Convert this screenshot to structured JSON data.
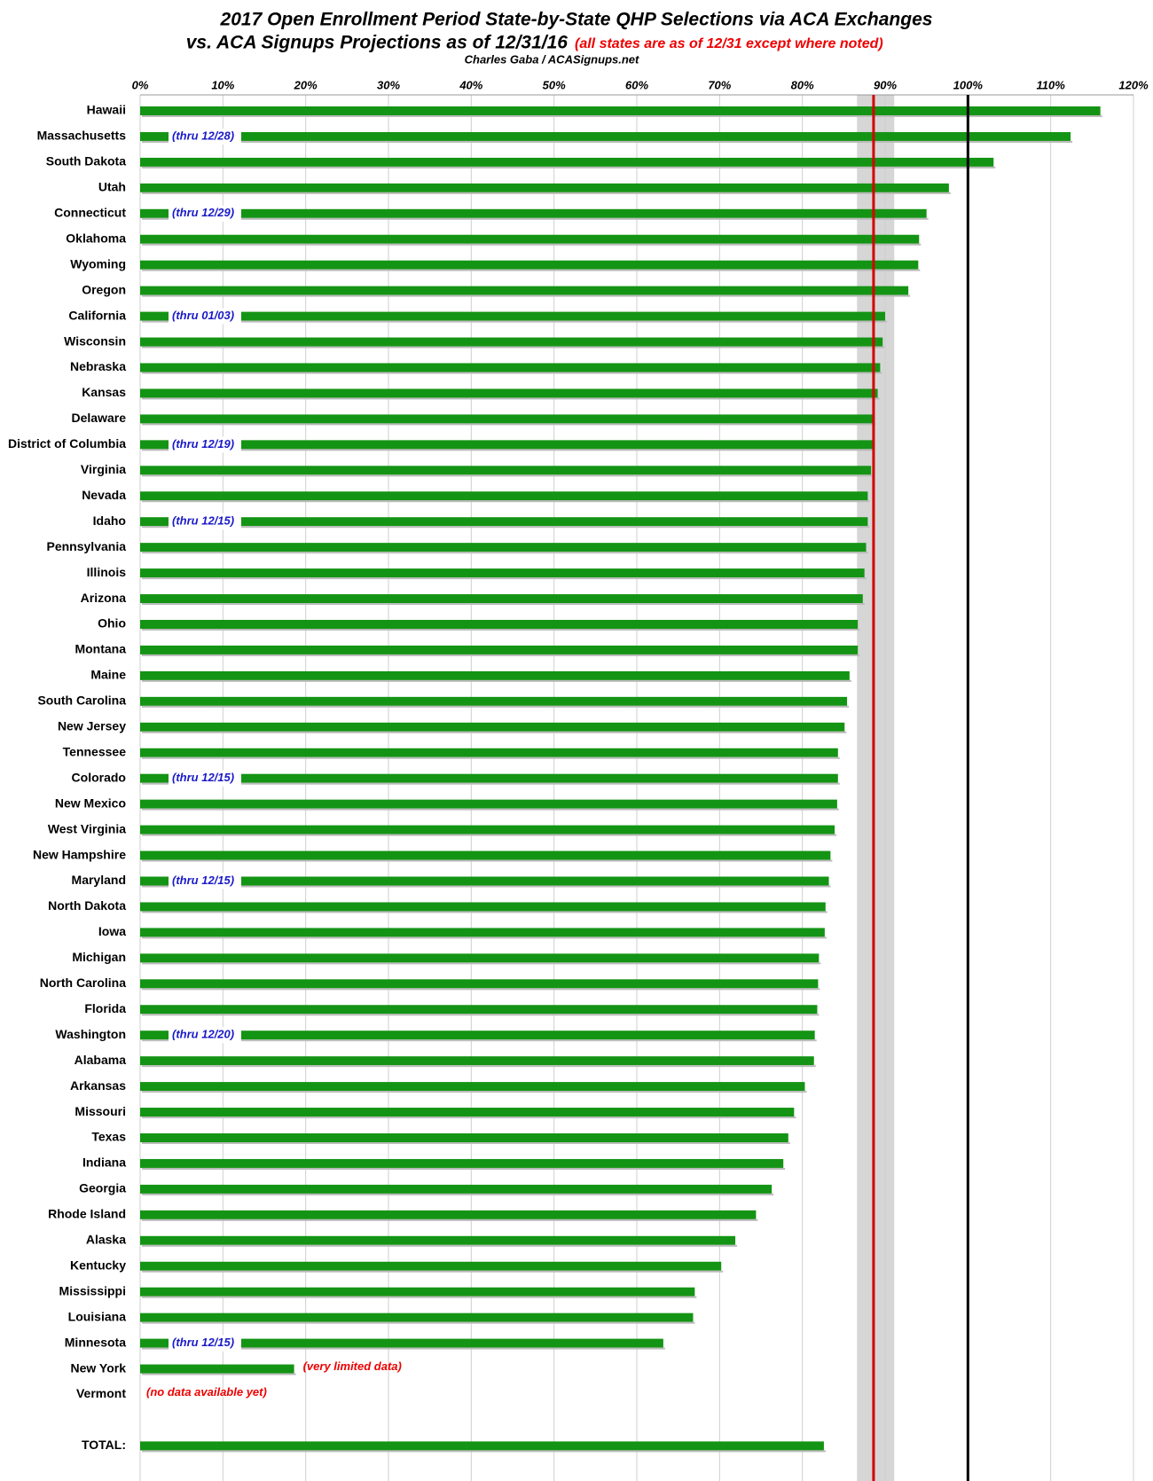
{
  "chart_data": {
    "type": "hbar",
    "title": "2017 Open Enrollment Period State-by-State QHP Selections via ACA Exchanges",
    "title_line2": "vs. ACA Signups Projections as of 12/31/16",
    "title_note": "(all states are as of 12/31 except where noted)",
    "subtitle": "Charles Gaba / ACASignups.net",
    "categories": [
      "Hawaii",
      "Massachusetts",
      "South Dakota",
      "Utah",
      "Connecticut",
      "Oklahoma",
      "Wyoming",
      "Oregon",
      "California",
      "Wisconsin",
      "Nebraska",
      "Kansas",
      "Delaware",
      "District of Columbia",
      "Virginia",
      "Nevada",
      "Idaho",
      "Pennsylvania",
      "Illinois",
      "Arizona",
      "Ohio",
      "Montana",
      "Maine",
      "South Carolina",
      "New Jersey",
      "Tennessee",
      "Colorado",
      "New Mexico",
      "West Virginia",
      "New Hampshire",
      "Maryland",
      "North Dakota",
      "Iowa",
      "Michigan",
      "North Carolina",
      "Florida",
      "Washington",
      "Alabama",
      "Arkansas",
      "Missouri",
      "Texas",
      "Indiana",
      "Georgia",
      "Rhode Island",
      "Alaska",
      "Kentucky",
      "Mississippi",
      "Louisiana",
      "Minnesota",
      "New York",
      "Vermont",
      null,
      "TOTAL:"
    ],
    "values": [
      116.0,
      112.4,
      103.1,
      97.7,
      95.0,
      94.1,
      94.0,
      92.8,
      90.0,
      89.7,
      89.4,
      89.1,
      88.6,
      88.5,
      88.3,
      87.9,
      87.9,
      87.7,
      87.5,
      87.3,
      86.7,
      86.7,
      85.7,
      85.4,
      85.1,
      84.3,
      84.3,
      84.2,
      83.9,
      83.4,
      83.2,
      82.8,
      82.7,
      82.0,
      81.9,
      81.8,
      81.5,
      81.4,
      80.3,
      79.0,
      78.3,
      77.7,
      76.3,
      74.4,
      71.9,
      70.2,
      67.0,
      66.8,
      63.2,
      18.6,
      null,
      null,
      82.6
    ],
    "period_notes": [
      null,
      "(thru 12/28)",
      null,
      null,
      "(thru 12/29)",
      null,
      null,
      null,
      "(thru 01/03)",
      null,
      null,
      null,
      null,
      "(thru 12/19)",
      null,
      null,
      "(thru 12/15)",
      null,
      null,
      null,
      null,
      null,
      null,
      null,
      null,
      null,
      "(thru 12/15)",
      null,
      null,
      null,
      "(thru 12/15)",
      null,
      null,
      null,
      null,
      null,
      "(thru 12/20)",
      null,
      null,
      null,
      null,
      null,
      null,
      null,
      null,
      null,
      null,
      null,
      "(thru 12/15)",
      null,
      null,
      null,
      null
    ],
    "data_notes": [
      null,
      null,
      null,
      null,
      null,
      null,
      null,
      null,
      null,
      null,
      null,
      null,
      null,
      null,
      null,
      null,
      null,
      null,
      null,
      null,
      null,
      null,
      null,
      null,
      null,
      null,
      null,
      null,
      null,
      null,
      null,
      null,
      null,
      null,
      null,
      null,
      null,
      null,
      null,
      null,
      null,
      null,
      null,
      null,
      null,
      null,
      null,
      null,
      null,
      "(very limited data)",
      "(no data available yet)",
      null,
      null
    ],
    "color": "#149414",
    "xlim": [
      0,
      120
    ],
    "xticks": [
      {
        "value": 0,
        "label": "0%"
      },
      {
        "value": 10,
        "label": "10%"
      },
      {
        "value": 20,
        "label": "20%"
      },
      {
        "value": 30,
        "label": "30%"
      },
      {
        "value": 40,
        "label": "40%"
      },
      {
        "value": 50,
        "label": "50%"
      },
      {
        "value": 60,
        "label": "60%"
      },
      {
        "value": 70,
        "label": "70%"
      },
      {
        "value": 80,
        "label": "80%"
      },
      {
        "value": 90,
        "label": "90%"
      },
      {
        "value": 100,
        "label": "100%"
      },
      {
        "value": 110,
        "label": "110%"
      },
      {
        "value": 120,
        "label": "120%"
      }
    ],
    "grid": true,
    "band": [
      86.6,
      91.1
    ],
    "reference_lines": [
      {
        "value": 100,
        "color": "#000000"
      },
      {
        "value": 88.6,
        "color": "#d40000"
      }
    ]
  }
}
